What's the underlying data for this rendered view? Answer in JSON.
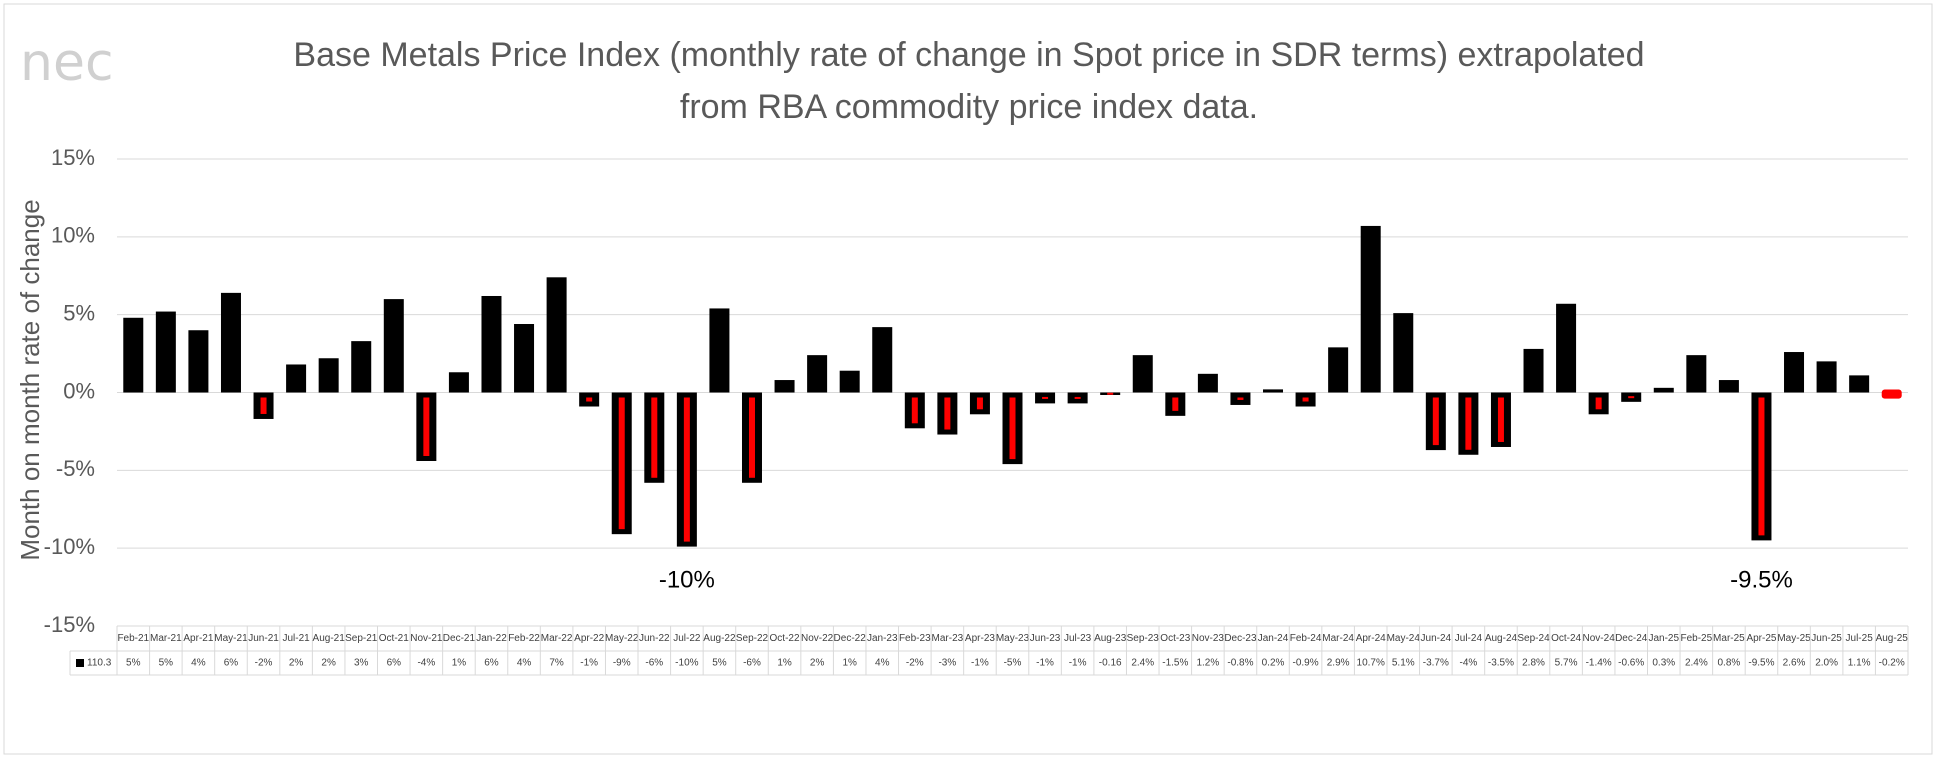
{
  "logo": "nec",
  "chart_data": {
    "type": "bar",
    "title": [
      "Base Metals Price Index (monthly rate of change in Spot price in SDR terms) extrapolated",
      "from RBA commodity price index data."
    ],
    "y_label": "Month on month rate of change",
    "series_name": "110.3",
    "color": "#000000",
    "negative_inner_color": "#ff0000",
    "last_color": "#ff0000",
    "grid": true,
    "ylim": [
      -15,
      15
    ],
    "yticks": [
      {
        "value": -15,
        "label": "-15%"
      },
      {
        "value": -10,
        "label": "-10%"
      },
      {
        "value": -5,
        "label": "-5%"
      },
      {
        "value": 0,
        "label": "0%"
      },
      {
        "value": 5,
        "label": "5%"
      },
      {
        "value": 10,
        "label": "10%"
      },
      {
        "value": 15,
        "label": "15%"
      }
    ],
    "categories": [
      "Feb-21",
      "Mar-21",
      "Apr-21",
      "May-21",
      "Jun-21",
      "Jul-21",
      "Aug-21",
      "Sep-21",
      "Oct-21",
      "Nov-21",
      "Dec-21",
      "Jan-22",
      "Feb-22",
      "Mar-22",
      "Apr-22",
      "May-22",
      "Jun-22",
      "Jul-22",
      "Aug-22",
      "Sep-22",
      "Oct-22",
      "Nov-22",
      "Dec-22",
      "Jan-23",
      "Feb-23",
      "Mar-23",
      "Apr-23",
      "May-23",
      "Jun-23",
      "Jul-23",
      "Aug-23",
      "Sep-23",
      "Oct-23",
      "Nov-23",
      "Dec-23",
      "Jan-24",
      "Feb-24",
      "Mar-24",
      "Apr-24",
      "May-24",
      "Jun-24",
      "Jul-24",
      "Aug-24",
      "Sep-24",
      "Oct-24",
      "Nov-24",
      "Dec-24",
      "Jan-25",
      "Feb-25",
      "Mar-25",
      "Apr-25",
      "May-25",
      "Jun-25",
      "Jul-25",
      "Aug-25"
    ],
    "values": [
      4.8,
      5.2,
      4.0,
      6.4,
      -1.7,
      1.8,
      2.2,
      3.3,
      6.0,
      -4.4,
      1.3,
      6.2,
      4.4,
      7.4,
      -0.9,
      -9.1,
      -5.8,
      -9.9,
      5.4,
      -5.8,
      0.8,
      2.4,
      1.4,
      4.2,
      -2.3,
      -2.7,
      -1.4,
      -4.6,
      -0.7,
      -0.7,
      -0.16,
      2.4,
      -1.5,
      1.2,
      -0.8,
      0.2,
      -0.9,
      2.9,
      10.7,
      5.1,
      -3.7,
      -4.0,
      -3.5,
      2.8,
      5.7,
      -1.4,
      -0.6,
      0.3,
      2.4,
      0.8,
      -9.5,
      2.6,
      2.0,
      1.1,
      -0.2
    ],
    "value_labels": [
      "5%",
      "5%",
      "4%",
      "6%",
      "-2%",
      "2%",
      "2%",
      "3%",
      "6%",
      "-4%",
      "1%",
      "6%",
      "4%",
      "7%",
      "-1%",
      "-9%",
      "-6%",
      "-10%",
      "5%",
      "-6%",
      "1%",
      "2%",
      "1%",
      "4%",
      "-2%",
      "-3%",
      "-1%",
      "-5%",
      "-1%",
      "-1%",
      "-0.16",
      "2.4%",
      "-1.5%",
      "1.2%",
      "-0.8%",
      "0.2%",
      "-0.9%",
      "2.9%",
      "10.7%",
      "5.1%",
      "-3.7%",
      "-4%",
      "-3.5%",
      "2.8%",
      "5.7%",
      "-1.4%",
      "-0.6%",
      "0.3%",
      "2.4%",
      "0.8%",
      "-9.5%",
      "2.6%",
      "2.0%",
      "1.1%",
      "-0.2%"
    ],
    "annotations": [
      {
        "text": "-10%",
        "index": 17
      },
      {
        "text": "-9.5%",
        "index": 50
      }
    ]
  }
}
